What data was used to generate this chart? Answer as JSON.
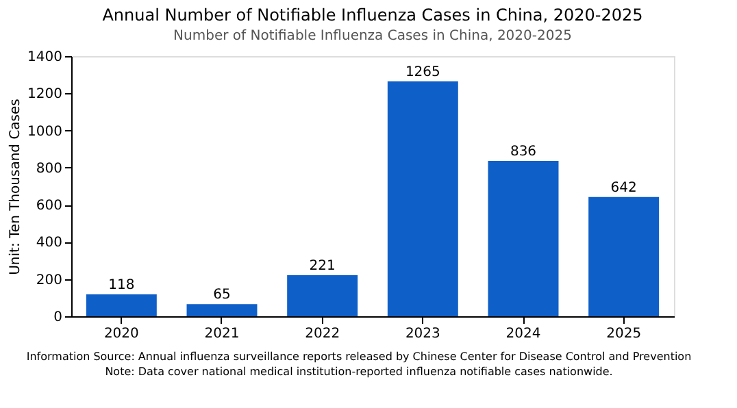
{
  "chart_data": {
    "type": "bar",
    "title": "Annual Number of Notifiable Influenza Cases in China, 2020-2025",
    "subtitle": "Number of Notifiable Influenza Cases in China, 2020-2025",
    "ylabel": "Unit: Ten Thousand Cases",
    "categories": [
      "2020",
      "2021",
      "2022",
      "2023",
      "2024",
      "2025"
    ],
    "values": [
      118,
      65,
      221,
      1265,
      836,
      642
    ],
    "color": "#0f5fc8",
    "data_labels": true,
    "ylim": [
      0,
      1400
    ],
    "yticks": [
      0,
      200,
      400,
      600,
      800,
      1000,
      1200,
      1400
    ],
    "grid": false,
    "annotations": [
      "Information Source: Annual influenza surveillance reports released by Chinese Center for Disease Control and Prevention",
      "Note: Data cover national medical institution-reported influenza notifiable cases nationwide."
    ]
  }
}
